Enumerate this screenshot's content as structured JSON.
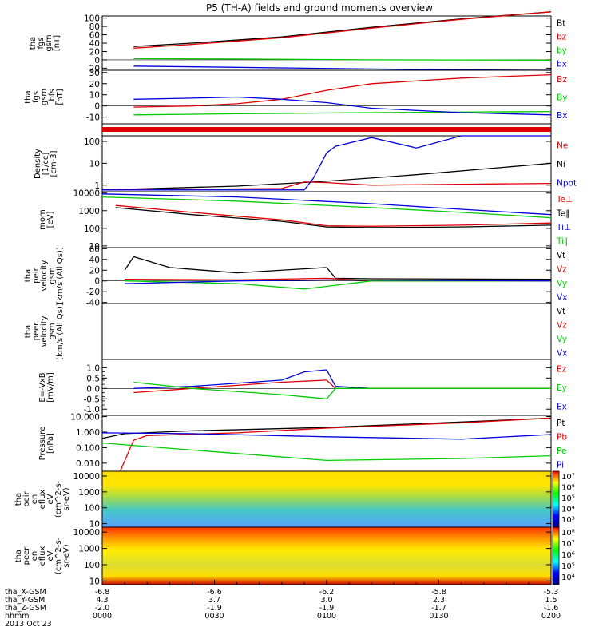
{
  "title": "P5 (TH-A) fields and ground moments overview",
  "date_label": "2013 Oct 23",
  "colors": {
    "black": "#000000",
    "red": "#e00000",
    "green": "#00cc00",
    "blue": "#0000dd"
  },
  "chart_data": [
    {
      "type": "line",
      "ylabel": [
        "tha",
        "fgs",
        "gsm",
        "[nT]"
      ],
      "yticks": [
        -20,
        0,
        20,
        40,
        60,
        80,
        100
      ],
      "ylim": [
        -25,
        105
      ],
      "log": false,
      "legend": [
        "Bt",
        "bz",
        "by",
        "bx"
      ],
      "legend_colors": [
        "black",
        "red",
        "green",
        "blue"
      ],
      "series": [
        {
          "name": "Bt",
          "color": "black",
          "x": [
            0.07,
            0.2,
            0.4,
            0.6,
            0.8,
            1.0
          ],
          "y": [
            32,
            40,
            55,
            78,
            98,
            115
          ]
        },
        {
          "name": "bz",
          "color": "red",
          "x": [
            0.07,
            0.2,
            0.4,
            0.6,
            0.8,
            1.0
          ],
          "y": [
            28,
            37,
            53,
            76,
            97,
            115
          ]
        },
        {
          "name": "by",
          "color": "green",
          "x": [
            0.07,
            0.3,
            0.6,
            1.0
          ],
          "y": [
            3,
            2,
            0,
            -1
          ]
        },
        {
          "name": "bx",
          "color": "blue",
          "x": [
            0.07,
            0.3,
            0.6,
            0.8,
            1.0
          ],
          "y": [
            -15,
            -18,
            -22,
            -24,
            -25
          ]
        }
      ]
    },
    {
      "type": "line",
      "ylabel": [
        "tha",
        "fgs",
        "gsm",
        "_bfs",
        "[nT]"
      ],
      "yticks": [
        -10,
        0,
        10,
        20,
        30
      ],
      "ylim": [
        -16,
        32
      ],
      "log": false,
      "legend": [
        "Bz",
        "By",
        "Bx"
      ],
      "legend_colors": [
        "red",
        "green",
        "blue"
      ],
      "series": [
        {
          "name": "Bz",
          "color": "red",
          "x": [
            0.07,
            0.2,
            0.3,
            0.4,
            0.5,
            0.6,
            0.8,
            1.0
          ],
          "y": [
            -1,
            0,
            2,
            6,
            14,
            20,
            25,
            28
          ]
        },
        {
          "name": "By",
          "color": "green",
          "x": [
            0.07,
            0.3,
            0.6,
            1.0
          ],
          "y": [
            -8,
            -7,
            -6,
            -5
          ]
        },
        {
          "name": "Bx",
          "color": "blue",
          "x": [
            0.07,
            0.2,
            0.3,
            0.4,
            0.5,
            0.6,
            0.8,
            1.0
          ],
          "y": [
            6,
            7,
            8,
            6,
            3,
            -2,
            -6,
            -8
          ]
        }
      ]
    },
    {
      "type": "line",
      "ylabel": [
        "Density",
        "[1/cc]",
        "[cm-3]"
      ],
      "yticks": [
        1,
        10,
        100
      ],
      "ytick_labels": [
        "1",
        "10",
        "100"
      ],
      "ylim": [
        0.5,
        180
      ],
      "log": true,
      "legend": [
        "Ne",
        "Ni",
        "Npot"
      ],
      "legend_colors": [
        "red",
        "black",
        "blue"
      ],
      "series": [
        {
          "name": "Ni",
          "color": "black",
          "x": [
            0,
            0.3,
            0.5,
            0.7,
            1.0
          ],
          "y": [
            0.6,
            0.9,
            1.5,
            3,
            10
          ]
        },
        {
          "name": "Ne",
          "color": "red",
          "x": [
            0,
            0.4,
            0.45,
            0.5,
            0.6,
            0.8,
            1.0
          ],
          "y": [
            0.6,
            0.7,
            1.4,
            1.3,
            1.0,
            1.1,
            1.2
          ]
        },
        {
          "name": "Npot",
          "color": "blue",
          "x": [
            0,
            0.45,
            0.47,
            0.5,
            0.52,
            0.6,
            0.7,
            0.8,
            1.0
          ],
          "y": [
            0.6,
            0.6,
            2,
            30,
            60,
            150,
            50,
            180,
            180
          ]
        }
      ]
    },
    {
      "type": "line",
      "ylabel": [
        "mom",
        "[eV]"
      ],
      "yticks": [
        10,
        100,
        1000,
        10000
      ],
      "ytick_labels": [
        "10",
        "100",
        "1000",
        "10000"
      ],
      "ylim": [
        8,
        12000
      ],
      "log": true,
      "legend": [
        "Te⊥",
        "Te∥",
        "Ti⊥",
        "Ti∥"
      ],
      "legend_colors": [
        "red",
        "black",
        "blue",
        "green"
      ],
      "series": [
        {
          "name": "Te∥",
          "color": "black",
          "x": [
            0.03,
            0.2,
            0.4,
            0.5,
            0.6,
            0.8,
            1.0
          ],
          "y": [
            1500,
            600,
            250,
            120,
            110,
            120,
            150
          ]
        },
        {
          "name": "Te⊥",
          "color": "red",
          "x": [
            0.03,
            0.2,
            0.4,
            0.5,
            0.6,
            0.8,
            1.0
          ],
          "y": [
            2000,
            800,
            300,
            140,
            130,
            150,
            200
          ]
        },
        {
          "name": "Ti⊥",
          "color": "blue",
          "x": [
            0,
            0.3,
            0.6,
            0.8,
            1.0
          ],
          "y": [
            9000,
            6000,
            2500,
            1200,
            600
          ]
        },
        {
          "name": "Ti∥",
          "color": "green",
          "x": [
            0,
            0.3,
            0.6,
            0.8,
            1.0
          ],
          "y": [
            6000,
            3500,
            1500,
            800,
            400
          ]
        }
      ]
    },
    {
      "type": "line",
      "ylabel": [
        "tha",
        "peir",
        "velocity",
        "gsm",
        "[km/s (All Qs)]"
      ],
      "yticks": [
        -40,
        -20,
        0,
        20,
        40,
        60
      ],
      "ylim": [
        -42,
        62
      ],
      "log": false,
      "legend": [
        "Vt",
        "Vz",
        "Vy",
        "Vx"
      ],
      "legend_colors": [
        "black",
        "red",
        "green",
        "blue"
      ],
      "series": [
        {
          "name": "Vt",
          "color": "black",
          "x": [
            0.05,
            0.07,
            0.15,
            0.3,
            0.5,
            0.52,
            0.6,
            1.0
          ],
          "y": [
            20,
            45,
            25,
            15,
            25,
            5,
            4,
            3
          ]
        },
        {
          "name": "Vz",
          "color": "red",
          "x": [
            0.05,
            0.3,
            0.5,
            0.6,
            1.0
          ],
          "y": [
            3,
            2,
            5,
            0,
            0
          ]
        },
        {
          "name": "Vy",
          "color": "green",
          "x": [
            0.05,
            0.3,
            0.45,
            0.5,
            0.6,
            1.0
          ],
          "y": [
            0,
            -5,
            -15,
            -10,
            0,
            0
          ]
        },
        {
          "name": "Vx",
          "color": "blue",
          "x": [
            0.05,
            0.3,
            0.5,
            1.0
          ],
          "y": [
            -5,
            0,
            2,
            0
          ]
        }
      ]
    },
    {
      "type": "line",
      "ylabel": [
        "tha",
        "peer",
        "velocity",
        "gsm",
        "[km/s (All Qs)]"
      ],
      "yticks": [],
      "ylim": [
        0,
        1
      ],
      "log": false,
      "legend": [
        "Vt",
        "Vz",
        "Vy",
        "Vx"
      ],
      "legend_colors": [
        "black",
        "red",
        "green",
        "blue"
      ],
      "series": []
    },
    {
      "type": "line",
      "ylabel": [
        "E=-VxB",
        "[mV/m]"
      ],
      "yticks": [
        -1.0,
        -0.5,
        0.0,
        0.5,
        1.0
      ],
      "ytick_labels": [
        "-1.0",
        "-0.5",
        "0.0",
        "0.5",
        "1.0"
      ],
      "extra_ticks": [
        -0.8,
        -0.6,
        -0.4,
        -0.2,
        0.2,
        0.4,
        0.6,
        0.8
      ],
      "ylim": [
        -1.3,
        1.4
      ],
      "log": false,
      "legend": [
        "Ez",
        "Ey",
        "Ex"
      ],
      "legend_colors": [
        "red",
        "green",
        "blue"
      ],
      "series": [
        {
          "name": "Ex",
          "color": "blue",
          "x": [
            0.07,
            0.2,
            0.4,
            0.45,
            0.5,
            0.52,
            0.6,
            1.0
          ],
          "y": [
            0,
            0.1,
            0.4,
            0.8,
            0.9,
            0.1,
            0,
            0
          ]
        },
        {
          "name": "Ez",
          "color": "red",
          "x": [
            0.07,
            0.2,
            0.4,
            0.5,
            0.52,
            0.6,
            1.0
          ],
          "y": [
            -0.2,
            0,
            0.3,
            0.4,
            0,
            0,
            0
          ]
        },
        {
          "name": "Ey",
          "color": "green",
          "x": [
            0.07,
            0.2,
            0.4,
            0.5,
            0.52,
            0.6,
            1.0
          ],
          "y": [
            0.3,
            0,
            -0.3,
            -0.5,
            0,
            0,
            0
          ]
        }
      ]
    },
    {
      "type": "line",
      "ylabel": [
        "Pressure",
        "[nPa]"
      ],
      "yticks": [
        0.01,
        0.1,
        1,
        10
      ],
      "ytick_labels": [
        "0.010",
        "0.100",
        "1.000",
        "10.000"
      ],
      "ylim": [
        0.003,
        12
      ],
      "log": true,
      "legend": [
        "Pt",
        "Pb",
        "Pe",
        "Pi"
      ],
      "legend_colors": [
        "black",
        "red",
        "green",
        "blue"
      ],
      "series": [
        {
          "name": "Pt",
          "color": "black",
          "x": [
            0,
            0.05,
            0.2,
            0.5,
            0.8,
            1.0
          ],
          "y": [
            0.4,
            0.8,
            1.2,
            2,
            4.5,
            8
          ]
        },
        {
          "name": "Pb",
          "color": "red",
          "x": [
            0.04,
            0.07,
            0.1,
            0.3,
            0.5,
            0.8,
            1.0
          ],
          "y": [
            0.003,
            0.3,
            0.6,
            0.9,
            1.8,
            4,
            8
          ]
        },
        {
          "name": "Pi",
          "color": "blue",
          "x": [
            0,
            0.2,
            0.5,
            0.8,
            1.0
          ],
          "y": [
            0.9,
            0.8,
            0.5,
            0.35,
            0.7
          ]
        },
        {
          "name": "Pe",
          "color": "green",
          "x": [
            0,
            0.2,
            0.5,
            0.8,
            1.0
          ],
          "y": [
            0.2,
            0.07,
            0.015,
            0.02,
            0.03
          ]
        }
      ]
    },
    {
      "type": "heatmap",
      "ylabel": [
        "tha",
        "peir",
        "en",
        "eflux",
        "eV",
        "(cm^2-s-",
        "sr-eV)"
      ],
      "yticks": [
        10,
        100,
        1000,
        10000
      ],
      "ytick_labels": [
        "10",
        "100",
        "1000",
        "10000"
      ],
      "ylim": [
        6,
        20000
      ],
      "log": true,
      "colorbar_labels": [
        "10³",
        "10⁴",
        "10⁵",
        "10⁶",
        "10⁷"
      ]
    },
    {
      "type": "heatmap",
      "ylabel": [
        "tha",
        "peer",
        "en",
        "eflux",
        "eV",
        "(cm^2-s-",
        "sr-eV)"
      ],
      "yticks": [
        10,
        100,
        1000,
        10000
      ],
      "ytick_labels": [
        "10",
        "100",
        "1000",
        "10000"
      ],
      "ylim": [
        6,
        20000
      ],
      "log": true,
      "colorbar_labels": [
        "10⁴",
        "10⁵",
        "10⁶",
        "10⁷",
        "10⁸"
      ]
    }
  ],
  "xaxis": {
    "row_labels": [
      "tha_X-GSM",
      "tha_Y-GSM",
      "tha_Z-GSM",
      "hhmm"
    ],
    "columns": [
      {
        "x": 0.0,
        "vals": [
          "-6.8",
          "4.3",
          "-2.0",
          "0000"
        ]
      },
      {
        "x": 0.25,
        "vals": [
          "-6.6",
          "3.7",
          "-1.9",
          "0030"
        ]
      },
      {
        "x": 0.5,
        "vals": [
          "-6.2",
          "3.0",
          "-1.9",
          "0100"
        ]
      },
      {
        "x": 0.75,
        "vals": [
          "-5.8",
          "2.3",
          "-1.7",
          "0130"
        ]
      },
      {
        "x": 1.0,
        "vals": [
          "-5.3",
          "1.5",
          "-1.6",
          "0200"
        ]
      }
    ]
  }
}
